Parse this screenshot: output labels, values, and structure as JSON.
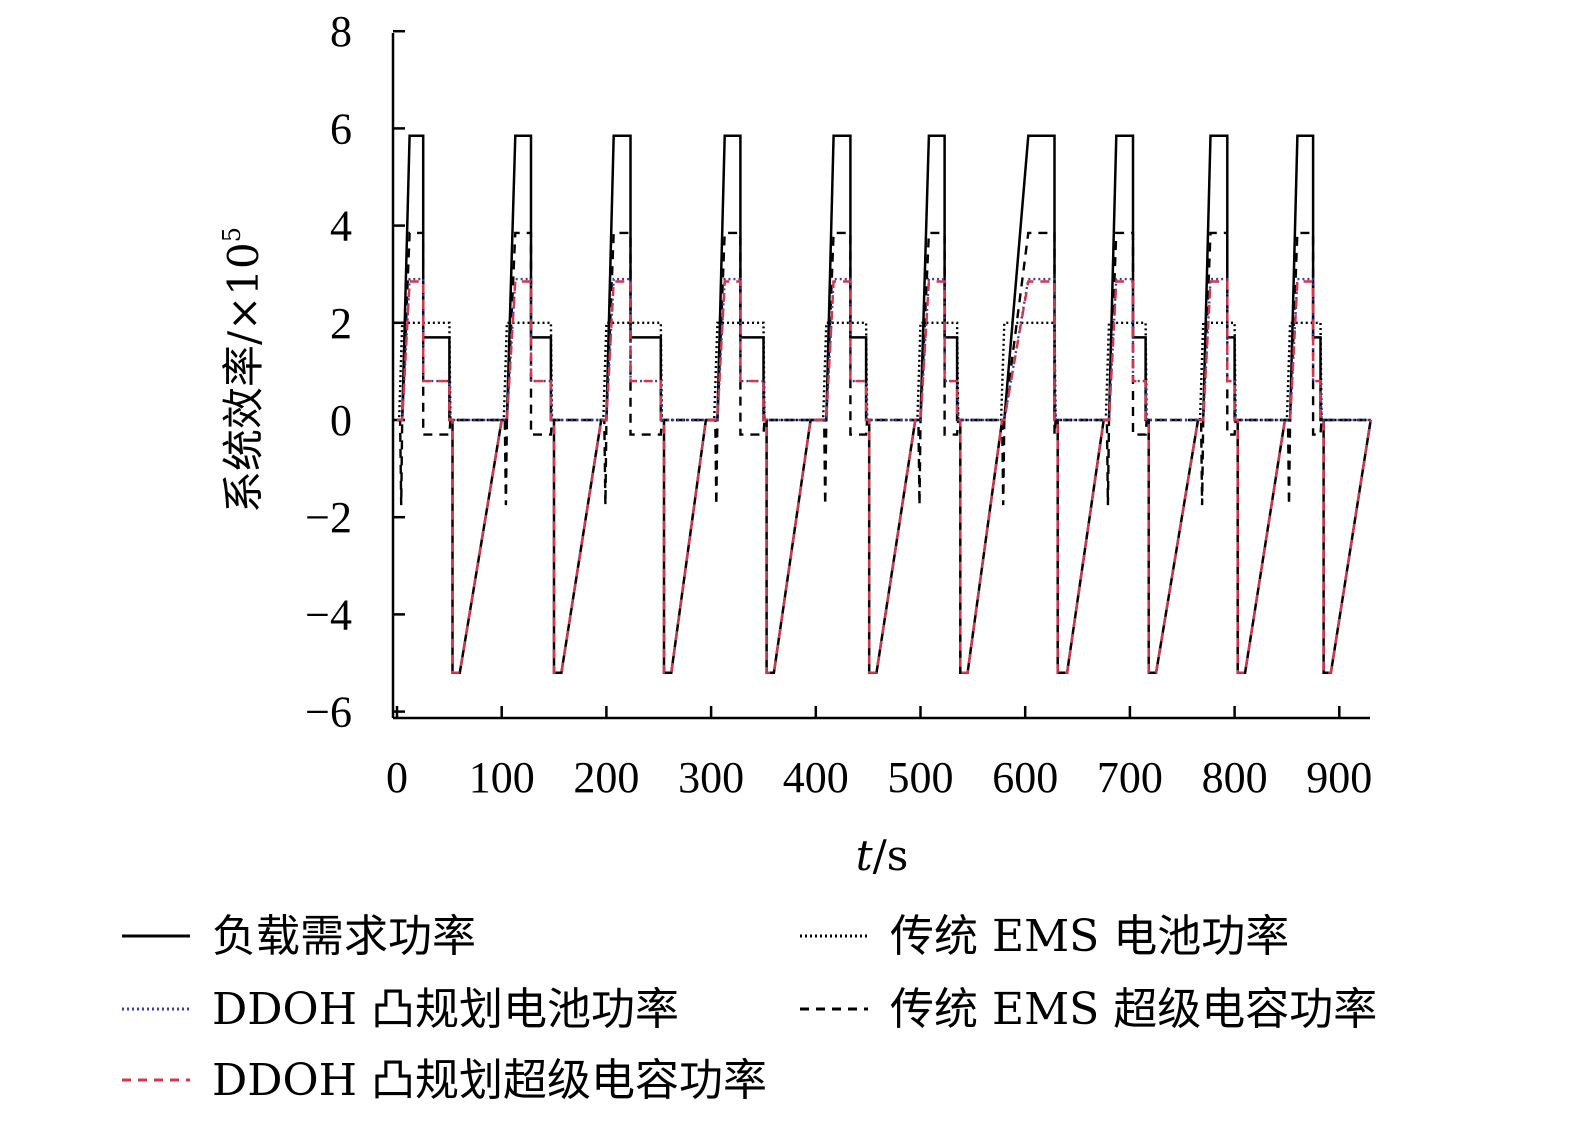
{
  "chart_data": {
    "type": "line",
    "title": "",
    "xlabel_italic": "t",
    "xlabel_unit": "/s",
    "ylabel": "系统效率/×10",
    "ylabel_exp": "5",
    "xlim": [
      0,
      930
    ],
    "ylim": [
      -6,
      8
    ],
    "xticks": [
      0,
      100,
      200,
      300,
      400,
      500,
      600,
      700,
      800,
      900
    ],
    "yticks": [
      -6,
      -4,
      -2,
      0,
      2,
      4,
      6,
      8
    ],
    "cycles": [
      {
        "start": 5,
        "peak": 12,
        "flat": 25,
        "mid": 50,
        "zero": 60,
        "neg_end": 100
      },
      {
        "start": 105,
        "peak": 113,
        "flat": 128,
        "mid": 147,
        "zero": 157,
        "neg_end": 195
      },
      {
        "start": 200,
        "peak": 207,
        "flat": 223,
        "mid": 252,
        "zero": 262,
        "neg_end": 295
      },
      {
        "start": 306,
        "peak": 313,
        "flat": 328,
        "mid": 350,
        "zero": 360,
        "neg_end": 395
      },
      {
        "start": 410,
        "peak": 417,
        "flat": 433,
        "mid": 448,
        "zero": 458,
        "neg_end": 495
      },
      {
        "start": 500,
        "peak": 508,
        "flat": 523,
        "mid": 535,
        "zero": 545,
        "neg_end": 578
      },
      {
        "start": 580,
        "peak": 603,
        "flat": 628,
        "mid": 628,
        "zero": 640,
        "neg_end": 675
      },
      {
        "start": 680,
        "peak": 687,
        "flat": 703,
        "mid": 715,
        "zero": 725,
        "neg_end": 765
      },
      {
        "start": 770,
        "peak": 777,
        "flat": 793,
        "mid": 800,
        "zero": 810,
        "neg_end": 848
      },
      {
        "start": 853,
        "peak": 860,
        "flat": 875,
        "mid": 882,
        "zero": 892,
        "neg_end": 930
      }
    ],
    "series": [
      {
        "name": "负载需求功率",
        "style": "solid",
        "color": "#000000",
        "levels": {
          "peak": 5.85,
          "mid": 1.7,
          "neg": -5.2
        }
      },
      {
        "name": "传统 EMS 电池功率",
        "style": "dotted",
        "color": "#000000",
        "levels": {
          "high": 2.0
        }
      },
      {
        "name": "DDOH 凸规划电池功率",
        "style": "dotted",
        "color": "#3a3fa8",
        "levels": {
          "peak": 2.9,
          "mid": 0.8
        }
      },
      {
        "name": "传统 EMS 超级电容功率",
        "style": "dashed",
        "color": "#000000",
        "levels": {
          "peak": 3.85,
          "mid": -0.3,
          "dip": -1.75
        }
      },
      {
        "name": "DDOH 凸规划超级电容功率",
        "style": "dashed",
        "color": "#d8344a",
        "levels": {
          "peak": 2.85,
          "mid": 0.8,
          "neg": -5.2
        }
      }
    ],
    "legend_position": "bottom",
    "grid": false
  }
}
